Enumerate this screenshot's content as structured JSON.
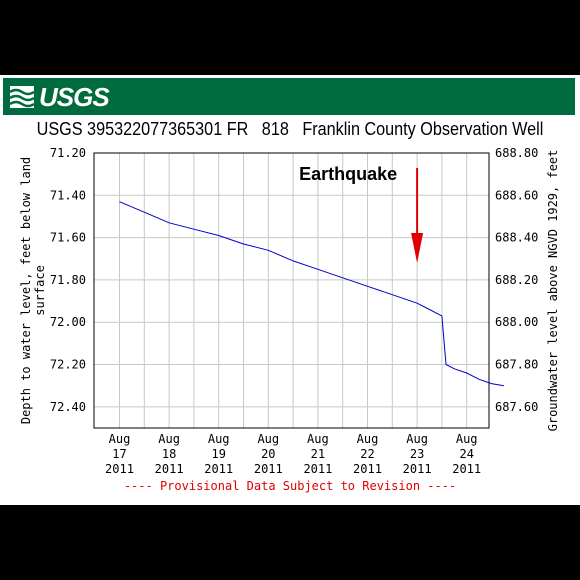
{
  "header": {
    "logo_text": "USGS",
    "title": "USGS 395322077365301 FR   818   Franklin County Observation Well"
  },
  "chart_data": {
    "type": "line",
    "title": "USGS 395322077365301 FR   818   Franklin County Observation Well",
    "ylabel_left": "Depth to water level, feet below land surface",
    "ylabel_left_lines": [
      "Depth to water level, feet below land",
      "surface"
    ],
    "ylabel_right": "Groundwater level above NGVD 1929, feet",
    "left_axis": {
      "ticks": [
        "71.20",
        "71.40",
        "71.60",
        "71.80",
        "72.00",
        "72.20",
        "72.40"
      ],
      "range": [
        71.2,
        72.5
      ],
      "inverted": true
    },
    "right_axis": {
      "ticks": [
        "688.80",
        "688.60",
        "688.40",
        "688.20",
        "688.00",
        "687.80",
        "687.60"
      ],
      "range": [
        687.5,
        688.8
      ]
    },
    "x_axis": {
      "start": "Aug 17 2011",
      "end": "Aug 25 2011",
      "ticks": [
        {
          "month": "Aug",
          "day": "17",
          "year": "2011",
          "t": 0
        },
        {
          "month": "Aug",
          "day": "18",
          "year": "2011",
          "t": 1
        },
        {
          "month": "Aug",
          "day": "19",
          "year": "2011",
          "t": 2
        },
        {
          "month": "Aug",
          "day": "20",
          "year": "2011",
          "t": 3
        },
        {
          "month": "Aug",
          "day": "21",
          "year": "2011",
          "t": 4
        },
        {
          "month": "Aug",
          "day": "22",
          "year": "2011",
          "t": 5
        },
        {
          "month": "Aug",
          "day": "23",
          "year": "2011",
          "t": 6
        },
        {
          "month": "Aug",
          "day": "24",
          "year": "2011",
          "t": 7
        }
      ]
    },
    "grid": true,
    "series": [
      {
        "color": "#0000cc",
        "points": [
          {
            "x": "2011-08-17 00:00",
            "y": 71.43
          },
          {
            "x": "2011-08-17 12:00",
            "y": 71.48
          },
          {
            "x": "2011-08-18 00:00",
            "y": 71.53
          },
          {
            "x": "2011-08-18 12:00",
            "y": 71.56
          },
          {
            "x": "2011-08-19 00:00",
            "y": 71.59
          },
          {
            "x": "2011-08-19 12:00",
            "y": 71.63
          },
          {
            "x": "2011-08-20 00:00",
            "y": 71.66
          },
          {
            "x": "2011-08-20 12:00",
            "y": 71.71
          },
          {
            "x": "2011-08-21 00:00",
            "y": 71.75
          },
          {
            "x": "2011-08-21 12:00",
            "y": 71.79
          },
          {
            "x": "2011-08-22 00:00",
            "y": 71.83
          },
          {
            "x": "2011-08-22 12:00",
            "y": 71.87
          },
          {
            "x": "2011-08-23 00:00",
            "y": 71.91
          },
          {
            "x": "2011-08-23 06:00",
            "y": 71.94
          },
          {
            "x": "2011-08-23 10:00",
            "y": 71.96
          },
          {
            "x": "2011-08-23 12:00",
            "y": 71.97
          },
          {
            "x": "2011-08-23 14:00",
            "y": 72.2
          },
          {
            "x": "2011-08-23 18:00",
            "y": 72.22
          },
          {
            "x": "2011-08-24 00:00",
            "y": 72.24
          },
          {
            "x": "2011-08-24 06:00",
            "y": 72.27
          },
          {
            "x": "2011-08-24 12:00",
            "y": 72.29
          },
          {
            "x": "2011-08-24 18:00",
            "y": 72.3
          }
        ]
      }
    ],
    "annotations": [
      {
        "text": "Earthquake",
        "arrow_color": "#e00000",
        "points_to": "2011-08-23 00:00"
      }
    ],
    "note": "---- Provisional Data Subject to Revision ----"
  }
}
